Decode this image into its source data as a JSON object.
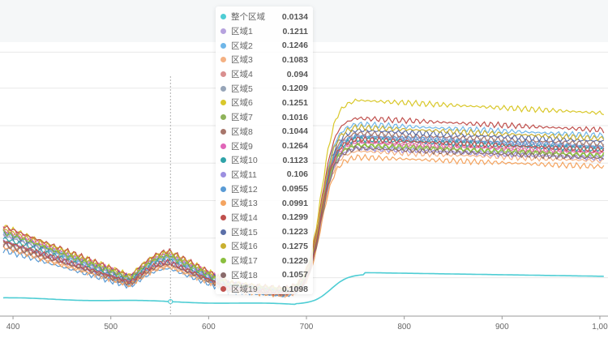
{
  "chart_data": {
    "type": "line",
    "xlim": [
      390,
      1005
    ],
    "x_ticks": [
      "400",
      "500",
      "600",
      "700",
      "800",
      "900",
      "1,00"
    ],
    "grid": true,
    "hover_x": 561,
    "series": [
      {
        "name": "整个区域",
        "color": "#4ecdd4",
        "hover_value": "0.0134",
        "base": 0.05,
        "peak": 0.28
      },
      {
        "name": "区域1",
        "color": "#b6a2de",
        "hover_value": "0.1211",
        "base": 0.27,
        "peak": 0.6
      },
      {
        "name": "区域2",
        "color": "#6fb6e8",
        "hover_value": "0.1246",
        "base": 0.28,
        "peak": 0.64
      },
      {
        "name": "区域3",
        "color": "#f4b183",
        "hover_value": "0.1083",
        "base": 0.23,
        "peak": 0.55
      },
      {
        "name": "区域4",
        "color": "#d98f8f",
        "hover_value": "0.094",
        "base": 0.24,
        "peak": 0.58
      },
      {
        "name": "区域5",
        "color": "#97a5b8",
        "hover_value": "0.1209",
        "base": 0.27,
        "peak": 0.6
      },
      {
        "name": "区域6",
        "color": "#d9c82b",
        "hover_value": "0.1251",
        "base": 0.3,
        "peak": 0.72
      },
      {
        "name": "区域7",
        "color": "#8fb35a",
        "hover_value": "0.1016",
        "base": 0.25,
        "peak": 0.57
      },
      {
        "name": "区域8",
        "color": "#a8766b",
        "hover_value": "0.1044",
        "base": 0.25,
        "peak": 0.61
      },
      {
        "name": "区域9",
        "color": "#e066b8",
        "hover_value": "0.1264",
        "base": 0.29,
        "peak": 0.58
      },
      {
        "name": "区域10",
        "color": "#2fa3a8",
        "hover_value": "0.1123",
        "base": 0.26,
        "peak": 0.59
      },
      {
        "name": "区域11",
        "color": "#9c8fe0",
        "hover_value": "0.106",
        "base": 0.25,
        "peak": 0.56
      },
      {
        "name": "区域12",
        "color": "#5a9bd5",
        "hover_value": "0.0955",
        "base": 0.22,
        "peak": 0.6
      },
      {
        "name": "区域13",
        "color": "#f4a460",
        "hover_value": "0.0991",
        "base": 0.23,
        "peak": 0.53
      },
      {
        "name": "区域14",
        "color": "#c0504d",
        "hover_value": "0.1299",
        "base": 0.3,
        "peak": 0.66
      },
      {
        "name": "区域15",
        "color": "#5b6fa8",
        "hover_value": "0.1223",
        "base": 0.28,
        "peak": 0.62
      },
      {
        "name": "区域16",
        "color": "#c9b030",
        "hover_value": "0.1275",
        "base": 0.29,
        "peak": 0.63
      },
      {
        "name": "区域17",
        "color": "#8bbf3f",
        "hover_value": "0.1229",
        "base": 0.28,
        "peak": 0.57
      },
      {
        "name": "区域18",
        "color": "#8a6b6b",
        "hover_value": "0.1057",
        "base": 0.24,
        "peak": 0.56
      },
      {
        "name": "区域19",
        "color": "#c0504d",
        "hover_value": "0.1098",
        "base": 0.25,
        "peak": 0.59
      }
    ]
  }
}
